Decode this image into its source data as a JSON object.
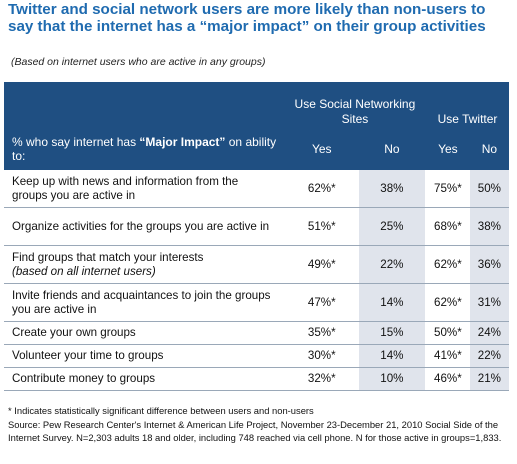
{
  "title": "Twitter and social network users are more likely than non-users to say that the internet has a “major impact” on their group activities",
  "subtitle": "(Based on internet users who are active in any groups)",
  "table": {
    "group_headers": [
      "Use Social Networking Sites",
      "Use Twitter"
    ],
    "lead_prefix": "% who say internet has ",
    "lead_bold": "“Major Impact”",
    "lead_suffix": " on ability to:",
    "col_labels": [
      "Yes",
      "No",
      "Yes",
      "No"
    ],
    "rows": [
      {
        "label": "Keep up with news and information from the groups you are active in",
        "label_italic": "",
        "values": [
          "62%*",
          "38%",
          "75%*",
          "50%"
        ]
      },
      {
        "label": "Organize activities for the groups you are active in",
        "label_italic": "",
        "values": [
          "51%*",
          "25%",
          "68%*",
          "38%"
        ]
      },
      {
        "label": "Find groups that match your interests",
        "label_italic": "(based on all internet users)",
        "values": [
          "49%*",
          "22%",
          "62%*",
          "36%"
        ]
      },
      {
        "label": "Invite friends and acquaintances to join the groups you are active in",
        "label_italic": "",
        "values": [
          "47%*",
          "14%",
          "62%*",
          "31%"
        ]
      },
      {
        "label": "Create your own groups",
        "label_italic": "",
        "values": [
          "35%*",
          "15%",
          "50%*",
          "24%"
        ]
      },
      {
        "label": "Volunteer your time to groups",
        "label_italic": "",
        "values": [
          "30%*",
          "14%",
          "41%*",
          "22%"
        ]
      },
      {
        "label": "Contribute money to groups",
        "label_italic": "",
        "values": [
          "32%*",
          "10%",
          "46%*",
          "21%"
        ]
      }
    ]
  },
  "footnote": "* Indicates statistically significant difference between users and non-users",
  "source": "Source: Pew Research Center's Internet & American Life Project, November 23-December 21, 2010 Social Side of the Internet Survey. N=2,303 adults 18 and older, including 748 reached via cell phone. N for those active in groups=1,833.",
  "colors": {
    "title": "#1f6bb0",
    "header_bg": "#1f4f82",
    "shade": "#e0e4ec"
  }
}
